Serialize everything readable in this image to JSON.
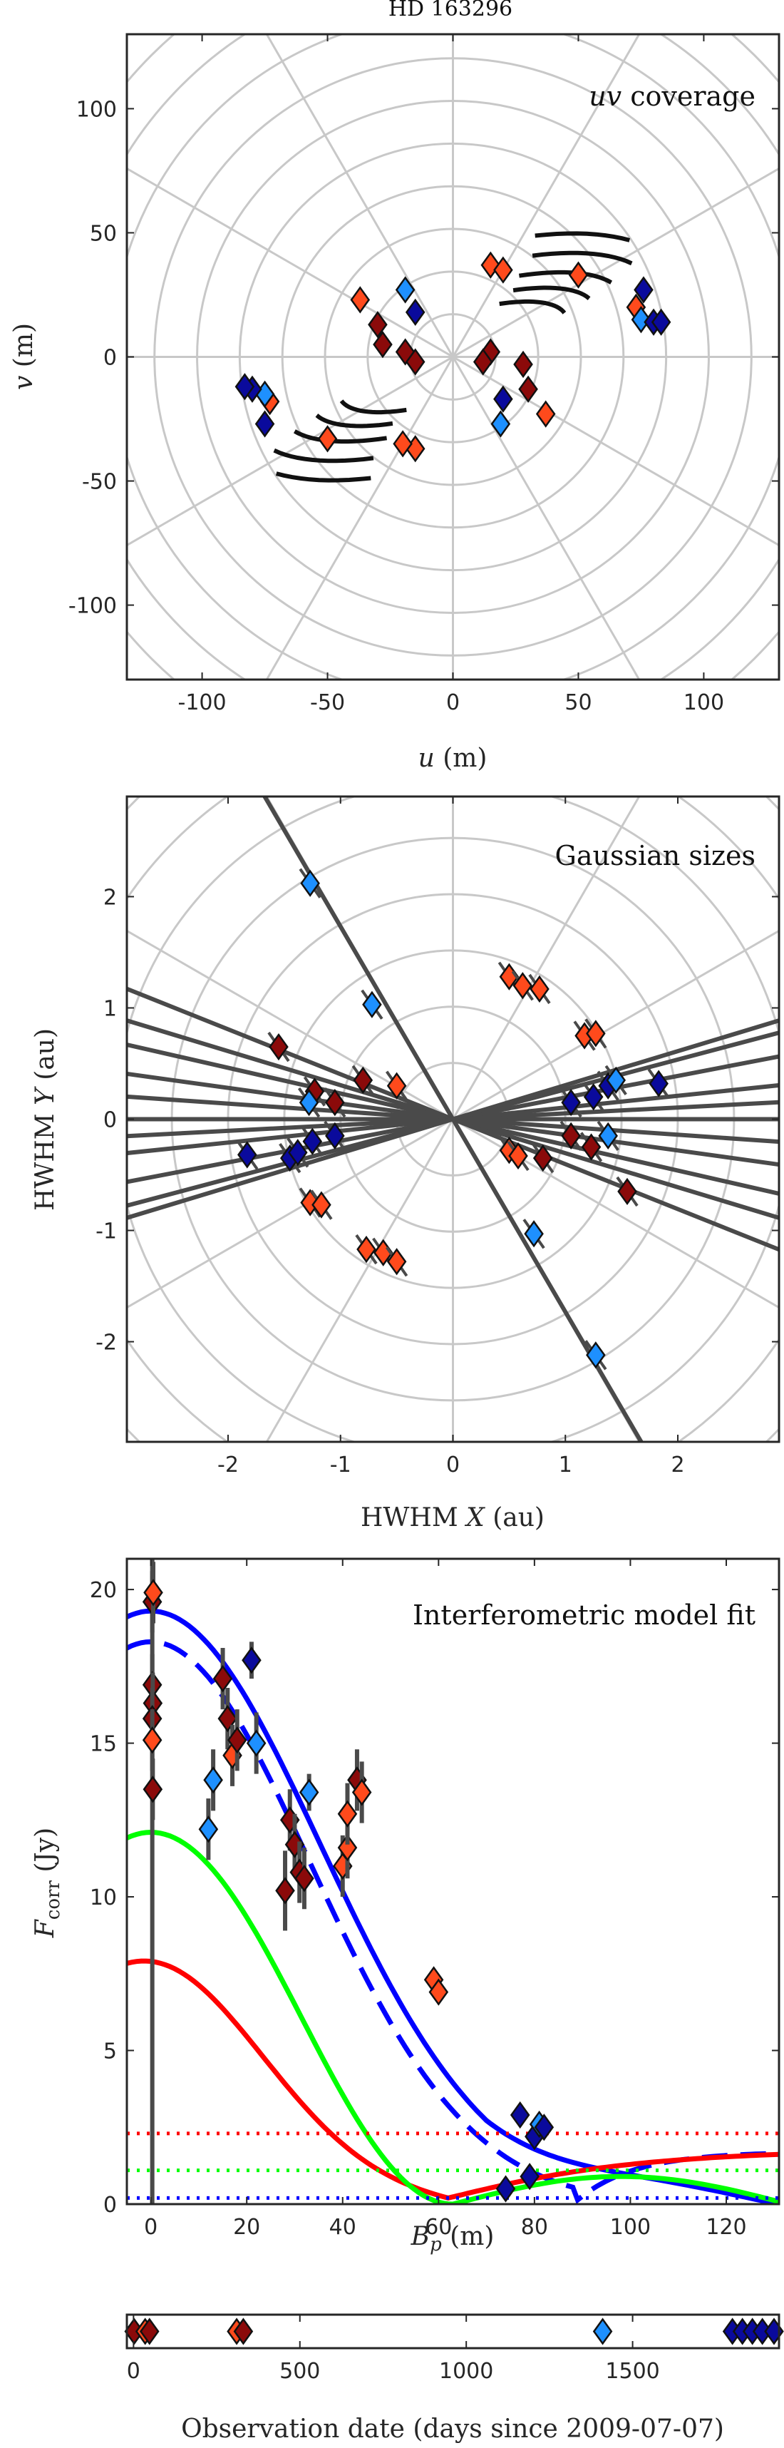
{
  "figure_title": "HD 163296",
  "colors": {
    "dark_red": "#8b0a0a",
    "orange_red": "#ff4a1c",
    "dark_blue": "#0a0a9c",
    "light_blue": "#1e90ff",
    "line_blue": "#0000ff",
    "line_red": "#ff0000",
    "line_green": "#00ff00",
    "grid": "#c8c8c8"
  },
  "chart_data": [
    {
      "type": "scatter",
      "name": "uv",
      "title_italic": "uv",
      "title_rest": " coverage",
      "xlabel_italic": "u",
      "xlabel_rest": " (m)",
      "ylabel_italic": "v",
      "ylabel_rest": " (m)",
      "xlim": [
        -130,
        130
      ],
      "ylim": [
        -130,
        130
      ],
      "xticks": [
        -100,
        -50,
        0,
        50,
        100
      ],
      "yticks": [
        -100,
        -50,
        0,
        50,
        100
      ],
      "polar_grid": true,
      "points": [
        {
          "u": -37,
          "v": 23,
          "c": "orange_red"
        },
        {
          "u": -30,
          "v": 13,
          "c": "dark_red"
        },
        {
          "u": -28,
          "v": 5,
          "c": "dark_red"
        },
        {
          "u": -19,
          "v": 2,
          "c": "dark_red"
        },
        {
          "u": -15,
          "v": 18,
          "c": "dark_blue"
        },
        {
          "u": -19,
          "v": 27,
          "c": "light_blue"
        },
        {
          "u": 15,
          "v": 37,
          "c": "orange_red"
        },
        {
          "u": 20,
          "v": 35,
          "c": "orange_red"
        },
        {
          "u": 50,
          "v": 33,
          "c": "orange_red"
        },
        {
          "u": 76,
          "v": 27,
          "c": "dark_blue"
        },
        {
          "u": 73,
          "v": 20,
          "c": "orange_red"
        },
        {
          "u": 75,
          "v": 15,
          "c": "light_blue"
        },
        {
          "u": 80,
          "v": 14,
          "c": "dark_blue"
        },
        {
          "u": 83,
          "v": 14,
          "c": "dark_blue"
        },
        {
          "u": 15,
          "v": 2,
          "c": "dark_red"
        },
        {
          "u": 12,
          "v": -2,
          "c": "dark_red"
        },
        {
          "u": 28,
          "v": -3,
          "c": "dark_red"
        },
        {
          "u": 30,
          "v": -13,
          "c": "dark_red"
        },
        {
          "u": 37,
          "v": -23,
          "c": "orange_red"
        },
        {
          "u": 20,
          "v": -17,
          "c": "dark_blue"
        },
        {
          "u": 19,
          "v": -27,
          "c": "light_blue"
        },
        {
          "u": -15,
          "v": -37,
          "c": "orange_red"
        },
        {
          "u": -20,
          "v": -35,
          "c": "orange_red"
        },
        {
          "u": -50,
          "v": -33,
          "c": "orange_red"
        },
        {
          "u": -75,
          "v": -27,
          "c": "dark_blue"
        },
        {
          "u": -73,
          "v": -18,
          "c": "orange_red"
        },
        {
          "u": -75,
          "v": -15,
          "c": "light_blue"
        },
        {
          "u": -80,
          "v": -13,
          "c": "dark_blue"
        },
        {
          "u": -83,
          "v": -12,
          "c": "dark_blue"
        },
        {
          "u": -15,
          "v": -2,
          "c": "dark_red"
        }
      ]
    },
    {
      "type": "scatter",
      "name": "sizes",
      "title": "Gaussian sizes",
      "xlabel_pre": "HWHM ",
      "xlabel_italic": "X",
      "xlabel_rest": " (au)",
      "ylabel_pre": "HWHM ",
      "ylabel_italic": "Y",
      "ylabel_rest": " (au)",
      "xlim": [
        -2.9,
        2.9
      ],
      "ylim": [
        -2.9,
        2.9
      ],
      "xticks": [
        -2,
        -1,
        0,
        1,
        2
      ],
      "yticks": [
        -2,
        -1,
        0,
        1,
        2
      ],
      "polar_grid": true,
      "points": [
        {
          "x": -1.27,
          "y": 2.12,
          "c": "light_blue"
        },
        {
          "x": -0.72,
          "y": 1.03,
          "c": "light_blue"
        },
        {
          "x": 0.5,
          "y": 1.28,
          "c": "orange_red"
        },
        {
          "x": 0.62,
          "y": 1.2,
          "c": "orange_red"
        },
        {
          "x": 0.77,
          "y": 1.17,
          "c": "orange_red"
        },
        {
          "x": -1.55,
          "y": 0.65,
          "c": "dark_red"
        },
        {
          "x": -1.23,
          "y": 0.25,
          "c": "dark_red"
        },
        {
          "x": -1.05,
          "y": 0.15,
          "c": "dark_red"
        },
        {
          "x": -0.8,
          "y": 0.35,
          "c": "dark_red"
        },
        {
          "x": -0.5,
          "y": 0.3,
          "c": "orange_red"
        },
        {
          "x": -1.28,
          "y": 0.15,
          "c": "light_blue"
        },
        {
          "x": 1.17,
          "y": 0.75,
          "c": "orange_red"
        },
        {
          "x": 1.27,
          "y": 0.77,
          "c": "orange_red"
        },
        {
          "x": 1.05,
          "y": 0.15,
          "c": "dark_blue"
        },
        {
          "x": 1.25,
          "y": 0.2,
          "c": "dark_blue"
        },
        {
          "x": 1.38,
          "y": 0.3,
          "c": "dark_blue"
        },
        {
          "x": 1.45,
          "y": 0.35,
          "c": "light_blue"
        },
        {
          "x": 1.83,
          "y": 0.32,
          "c": "dark_blue"
        },
        {
          "x": -1.83,
          "y": -0.32,
          "c": "dark_blue"
        },
        {
          "x": -1.45,
          "y": -0.35,
          "c": "dark_blue"
        },
        {
          "x": -1.38,
          "y": -0.3,
          "c": "dark_blue"
        },
        {
          "x": -1.25,
          "y": -0.2,
          "c": "dark_blue"
        },
        {
          "x": -1.05,
          "y": -0.15,
          "c": "dark_blue"
        },
        {
          "x": 1.38,
          "y": -0.15,
          "c": "light_blue"
        },
        {
          "x": 1.05,
          "y": -0.15,
          "c": "dark_red"
        },
        {
          "x": 1.23,
          "y": -0.25,
          "c": "dark_red"
        },
        {
          "x": 1.55,
          "y": -0.65,
          "c": "dark_red"
        },
        {
          "x": 0.5,
          "y": -0.28,
          "c": "orange_red"
        },
        {
          "x": 0.58,
          "y": -0.33,
          "c": "orange_red"
        },
        {
          "x": 0.8,
          "y": -0.35,
          "c": "dark_red"
        },
        {
          "x": -1.27,
          "y": -0.75,
          "c": "orange_red"
        },
        {
          "x": -1.17,
          "y": -0.77,
          "c": "orange_red"
        },
        {
          "x": -0.77,
          "y": -1.17,
          "c": "orange_red"
        },
        {
          "x": -0.62,
          "y": -1.2,
          "c": "orange_red"
        },
        {
          "x": -0.5,
          "y": -1.28,
          "c": "orange_red"
        },
        {
          "x": 0.72,
          "y": -1.03,
          "c": "light_blue"
        },
        {
          "x": 1.27,
          "y": -2.12,
          "c": "light_blue"
        }
      ],
      "axis_lines_deg": [
        -60,
        -22,
        -17,
        -13,
        -8,
        -4,
        0,
        3,
        6,
        11,
        15,
        17
      ]
    },
    {
      "type": "line",
      "name": "fit",
      "title": "Interferometric model fit",
      "xlabel_italic": "B",
      "xlabel_sub": "p",
      "xlabel_rest": " (m)",
      "ylabel_italic": "F",
      "ylabel_sub": "corr",
      "ylabel_rest": " (Jy)",
      "xlim": [
        -5,
        131
      ],
      "ylim": [
        0,
        21
      ],
      "xticks": [
        0,
        20,
        40,
        60,
        80,
        100,
        120
      ],
      "yticks": [
        0,
        5,
        10,
        15,
        20
      ],
      "series": [
        {
          "key": "total",
          "color": "line_blue",
          "dash": "solid",
          "f0": 19.3,
          "s": 50
        },
        {
          "key": "total_alt",
          "color": "line_blue",
          "dash": "dashed",
          "f0": 18.3,
          "s": 47
        },
        {
          "key": "red",
          "color": "line_red",
          "dash": "solid"
        },
        {
          "key": "green",
          "color": "line_green",
          "dash": "solid"
        },
        {
          "key": "red_const",
          "color": "line_red",
          "dash": "dotted",
          "y": 2.3
        },
        {
          "key": "green_const",
          "color": "line_green",
          "dash": "dotted",
          "y": 1.1
        },
        {
          "key": "blue_const",
          "color": "line_blue",
          "dash": "dotted",
          "y": 0.2
        }
      ],
      "points": [
        {
          "x": 0.3,
          "y": 19.6,
          "e": 1.0,
          "c": "dark_red"
        },
        {
          "x": 0.5,
          "y": 19.9,
          "e": 1.0,
          "c": "orange_red"
        },
        {
          "x": 0.3,
          "y": 16.9,
          "e": 1.0,
          "c": "dark_red"
        },
        {
          "x": 0.4,
          "y": 16.3,
          "e": 1.0,
          "c": "dark_red"
        },
        {
          "x": 0.3,
          "y": 15.8,
          "e": 1.0,
          "c": "dark_red"
        },
        {
          "x": 0.3,
          "y": 15.1,
          "e": 1.0,
          "c": "orange_red"
        },
        {
          "x": 0.4,
          "y": 13.5,
          "e": 1.0,
          "c": "dark_red"
        },
        {
          "x": 12,
          "y": 12.2,
          "e": 1.0,
          "c": "light_blue"
        },
        {
          "x": 13,
          "y": 13.8,
          "e": 1.0,
          "c": "light_blue"
        },
        {
          "x": 15,
          "y": 17.1,
          "e": 1.0,
          "c": "dark_red"
        },
        {
          "x": 16,
          "y": 15.8,
          "e": 1.0,
          "c": "dark_red"
        },
        {
          "x": 17,
          "y": 14.6,
          "e": 1.0,
          "c": "orange_red"
        },
        {
          "x": 18,
          "y": 15.1,
          "e": 1.0,
          "c": "dark_red"
        },
        {
          "x": 21,
          "y": 17.7,
          "e": 0.6,
          "c": "dark_blue"
        },
        {
          "x": 22,
          "y": 15.0,
          "e": 1.0,
          "c": "light_blue"
        },
        {
          "x": 28,
          "y": 10.2,
          "e": 1.3,
          "c": "dark_red"
        },
        {
          "x": 29,
          "y": 12.5,
          "e": 1.0,
          "c": "dark_red"
        },
        {
          "x": 30,
          "y": 11.7,
          "e": 1.0,
          "c": "dark_red"
        },
        {
          "x": 31,
          "y": 10.8,
          "e": 1.0,
          "c": "dark_red"
        },
        {
          "x": 32,
          "y": 10.6,
          "e": 1.0,
          "c": "dark_red"
        },
        {
          "x": 33,
          "y": 13.4,
          "e": 0.6,
          "c": "light_blue"
        },
        {
          "x": 40,
          "y": 11.0,
          "e": 1.0,
          "c": "orange_red"
        },
        {
          "x": 41,
          "y": 11.6,
          "e": 1.0,
          "c": "orange_red"
        },
        {
          "x": 41,
          "y": 12.7,
          "e": 1.0,
          "c": "orange_red"
        },
        {
          "x": 43,
          "y": 13.8,
          "e": 1.0,
          "c": "dark_red"
        },
        {
          "x": 44,
          "y": 13.4,
          "e": 1.0,
          "c": "orange_red"
        },
        {
          "x": 59,
          "y": 7.3,
          "e": 0.3,
          "c": "orange_red"
        },
        {
          "x": 60,
          "y": 6.9,
          "e": 0.3,
          "c": "orange_red"
        },
        {
          "x": 74,
          "y": 0.5,
          "e": 0.2,
          "c": "dark_blue"
        },
        {
          "x": 77,
          "y": 2.9,
          "e": 0.3,
          "c": "dark_blue"
        },
        {
          "x": 79,
          "y": 0.9,
          "e": 0.2,
          "c": "dark_blue"
        },
        {
          "x": 80,
          "y": 2.2,
          "e": 0.3,
          "c": "dark_blue"
        },
        {
          "x": 81,
          "y": 2.6,
          "e": 0.3,
          "c": "light_blue"
        },
        {
          "x": 82,
          "y": 2.5,
          "e": 0.3,
          "c": "dark_blue"
        }
      ]
    },
    {
      "type": "scatter",
      "name": "timeline",
      "xlabel": "Observation date (days since 2009-07-07)",
      "xlim": [
        -20,
        1940
      ],
      "xticks": [
        0,
        500,
        1000,
        1500
      ],
      "points": [
        {
          "x": 2,
          "c": "dark_red"
        },
        {
          "x": 35,
          "c": "orange_red"
        },
        {
          "x": 48,
          "c": "dark_red"
        },
        {
          "x": 310,
          "c": "orange_red"
        },
        {
          "x": 330,
          "c": "dark_red"
        },
        {
          "x": 1410,
          "c": "light_blue"
        },
        {
          "x": 1800,
          "c": "dark_blue"
        },
        {
          "x": 1830,
          "c": "dark_blue"
        },
        {
          "x": 1860,
          "c": "dark_blue"
        },
        {
          "x": 1890,
          "c": "dark_blue"
        },
        {
          "x": 1925,
          "c": "dark_blue"
        }
      ]
    }
  ]
}
